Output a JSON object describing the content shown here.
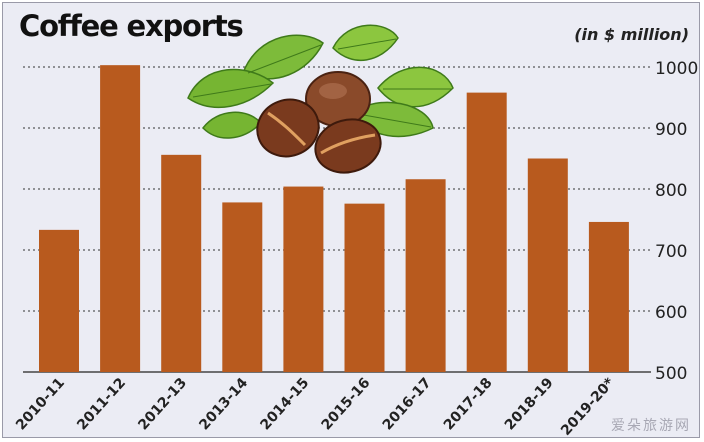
{
  "chart_data": {
    "type": "bar",
    "title": "Coffee exports",
    "unit_label": "(in $ million)",
    "categories": [
      "2010-11",
      "2011-12",
      "2012-13",
      "2013-14",
      "2014-15",
      "2015-16",
      "2016-17",
      "2017-18",
      "2018-19",
      "2019-20*"
    ],
    "values": [
      733,
      1003,
      856,
      778,
      804,
      776,
      816,
      958,
      850,
      746
    ],
    "ylim": [
      500,
      1000
    ],
    "yticks": [
      "500",
      "600",
      "700",
      "800",
      "900",
      "1000"
    ],
    "grid": true,
    "bar_color": "#b85a1e",
    "background": "#ebecf4"
  },
  "watermark": "爱朵旅游网",
  "decoration": {
    "icon": "coffee-beans-leaves-icon"
  }
}
